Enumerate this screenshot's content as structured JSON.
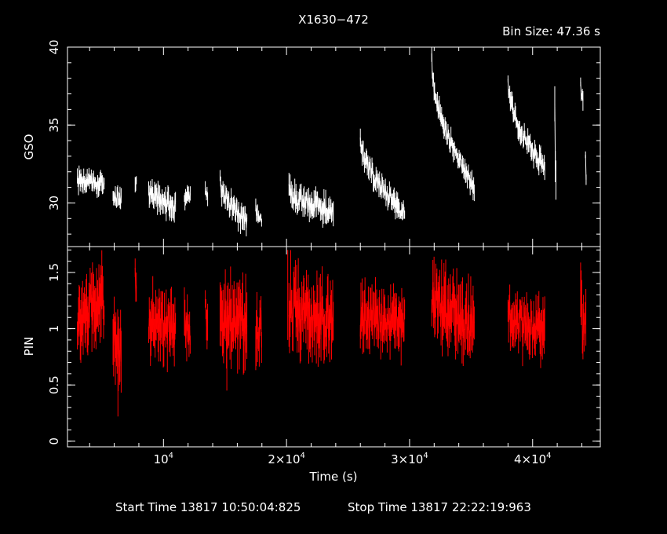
{
  "title": "X1630−472",
  "bin_size": "Bin Size: 47.36 s",
  "footer": {
    "start": "Start Time 13817 10:50:04:825",
    "stop": "Stop Time 13817 22:22:19:963"
  },
  "xaxis": {
    "label": "Time (s)",
    "range": [
      2200,
      45500
    ],
    "ticks": [
      {
        "value": 10000,
        "base": "10",
        "exp": "4"
      },
      {
        "value": 20000,
        "base": "2×10",
        "exp": "4"
      },
      {
        "value": 30000,
        "base": "3×10",
        "exp": "4"
      },
      {
        "value": 40000,
        "base": "4×10",
        "exp": "4"
      }
    ]
  },
  "chart_data": [
    {
      "type": "line",
      "name": "gso-panel",
      "ylabel": "GSO",
      "ylim": [
        27.2,
        40
      ],
      "yticks": [
        {
          "value": 30,
          "label": "30"
        },
        {
          "value": 35,
          "label": "35"
        },
        {
          "value": 40,
          "label": "40"
        }
      ],
      "color": "#ffffff",
      "segments": [
        {
          "x0": 3000,
          "x1": 5200,
          "start": 31.5,
          "end": 31.2,
          "noise": 1.0
        },
        {
          "x0": 5900,
          "x1": 6600,
          "start": 30.8,
          "end": 30.2,
          "noise": 1.1
        },
        {
          "x0": 7700,
          "x1": 7800,
          "start": 31.5,
          "end": 31.3,
          "noise": 0.8
        },
        {
          "x0": 8800,
          "x1": 11000,
          "start": 31.0,
          "end": 29.8,
          "noise": 1.2
        },
        {
          "x0": 11700,
          "x1": 12200,
          "start": 30.6,
          "end": 30.2,
          "noise": 0.9
        },
        {
          "x0": 13400,
          "x1": 13600,
          "start": 30.8,
          "end": 30.5,
          "noise": 0.8
        },
        {
          "x0": 14600,
          "x1": 16800,
          "start": 31.5,
          "end": 28.8,
          "noise": 1.2
        },
        {
          "x0": 17500,
          "x1": 18000,
          "start": 29.5,
          "end": 29.0,
          "noise": 0.9
        },
        {
          "x0": 20200,
          "x1": 23800,
          "start": 30.8,
          "end": 29.6,
          "noise": 1.3
        },
        {
          "x0": 26000,
          "x1": 29600,
          "start": 34.5,
          "end": 29.5,
          "noise": 1.1
        },
        {
          "x0": 31800,
          "x1": 35300,
          "start": 39.5,
          "end": 31.0,
          "noise": 1.0
        },
        {
          "x0": 38000,
          "x1": 41000,
          "start": 38.0,
          "end": 32.3,
          "noise": 1.0
        },
        {
          "x0": 41800,
          "x1": 41900,
          "start": 36.0,
          "end": 31.5,
          "noise": 2.5
        },
        {
          "x0": 43900,
          "x1": 44100,
          "start": 38.0,
          "end": 36.5,
          "noise": 1.0
        },
        {
          "x0": 44300,
          "x1": 44350,
          "start": 33.0,
          "end": 31.7,
          "noise": 0.8
        }
      ]
    },
    {
      "type": "line",
      "name": "pin-panel",
      "ylabel": "PIN",
      "ylim": [
        -0.05,
        1.73
      ],
      "yticks": [
        {
          "value": 0,
          "label": "0"
        },
        {
          "value": 0.5,
          "label": "0.5"
        },
        {
          "value": 1,
          "label": "1"
        },
        {
          "value": 1.5,
          "label": "1.5"
        }
      ],
      "color": "#ff0000",
      "segments": [
        {
          "x0": 3000,
          "x1": 5200,
          "start": 1.1,
          "end": 1.25,
          "noise": 0.45
        },
        {
          "x0": 5900,
          "x1": 6600,
          "start": 1.05,
          "end": 0.8,
          "noise": 0.45
        },
        {
          "x0": 7700,
          "x1": 7800,
          "start": 1.45,
          "end": 1.35,
          "noise": 0.3
        },
        {
          "x0": 8800,
          "x1": 11000,
          "start": 1.1,
          "end": 1.0,
          "noise": 0.4
        },
        {
          "x0": 11700,
          "x1": 12200,
          "start": 1.05,
          "end": 1.0,
          "noise": 0.35
        },
        {
          "x0": 13400,
          "x1": 13600,
          "start": 1.2,
          "end": 1.1,
          "noise": 0.3
        },
        {
          "x0": 14600,
          "x1": 16800,
          "start": 1.1,
          "end": 1.05,
          "noise": 0.5
        },
        {
          "x0": 17500,
          "x1": 18000,
          "start": 0.9,
          "end": 1.0,
          "noise": 0.4
        },
        {
          "x0": 20200,
          "x1": 23800,
          "start": 1.2,
          "end": 1.1,
          "noise": 0.5
        },
        {
          "x0": 26000,
          "x1": 29600,
          "start": 1.1,
          "end": 1.05,
          "noise": 0.4
        },
        {
          "x0": 31800,
          "x1": 35300,
          "start": 1.3,
          "end": 1.05,
          "noise": 0.45
        },
        {
          "x0": 38000,
          "x1": 41000,
          "start": 1.1,
          "end": 1.0,
          "noise": 0.35
        },
        {
          "x0": 43900,
          "x1": 44350,
          "start": 1.2,
          "end": 0.95,
          "noise": 0.45
        }
      ],
      "spikes": [
        {
          "x": 6300,
          "low": 0.22,
          "high": 1.0
        },
        {
          "x": 15150,
          "low": 0.45,
          "high": 1.1
        },
        {
          "x": 20100,
          "low": 0.9,
          "high": 1.7
        }
      ]
    }
  ]
}
